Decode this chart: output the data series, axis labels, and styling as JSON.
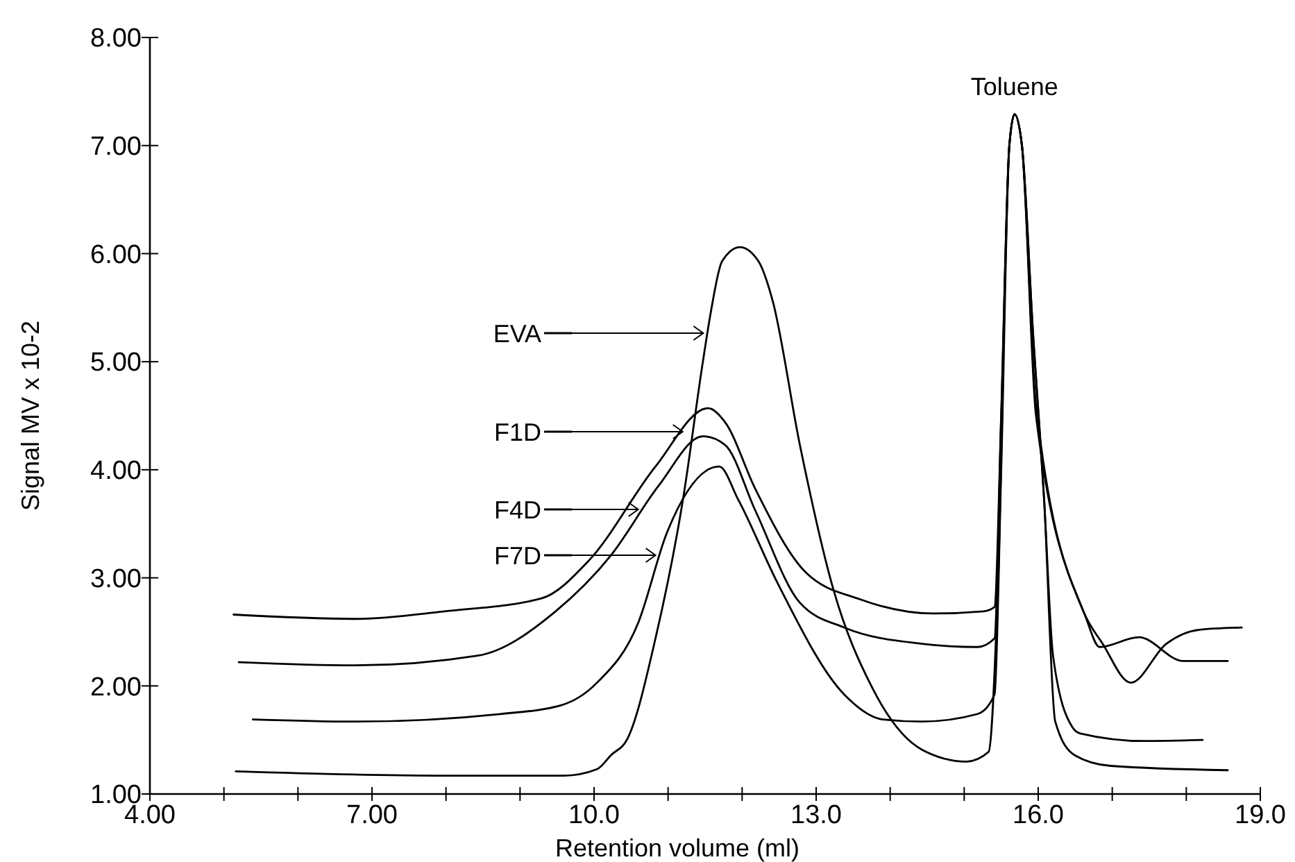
{
  "chart_data": {
    "type": "line",
    "xlabel": "Retention volume (ml)",
    "ylabel": "Signal MV x 10-2",
    "xlim": [
      4,
      19
    ],
    "ylim": [
      1,
      8
    ],
    "xticks": [
      {
        "value": 4,
        "label": "4.00"
      },
      {
        "value": 5,
        "label": null
      },
      {
        "value": 6,
        "label": null
      },
      {
        "value": 7,
        "label": "7.00"
      },
      {
        "value": 8,
        "label": null
      },
      {
        "value": 9,
        "label": null
      },
      {
        "value": 10,
        "label": "10.0"
      },
      {
        "value": 11,
        "label": null
      },
      {
        "value": 12,
        "label": null
      },
      {
        "value": 13,
        "label": "13.0"
      },
      {
        "value": 14,
        "label": null
      },
      {
        "value": 15,
        "label": null
      },
      {
        "value": 16,
        "label": "16.0"
      },
      {
        "value": 17,
        "label": null
      },
      {
        "value": 18,
        "label": null
      },
      {
        "value": 19,
        "label": "19.0"
      }
    ],
    "yticks": [
      {
        "value": 1,
        "label": "1.00"
      },
      {
        "value": 2,
        "label": "2.00"
      },
      {
        "value": 3,
        "label": "3.00"
      },
      {
        "value": 4,
        "label": "4.00"
      },
      {
        "value": 5,
        "label": "5.00"
      },
      {
        "value": 6,
        "label": "6.00"
      },
      {
        "value": 7,
        "label": "7.00"
      },
      {
        "value": 8,
        "label": "8.00"
      }
    ],
    "grid": false,
    "legend": "center",
    "marker": "none",
    "line_style": "solid",
    "annotations": [
      {
        "text": "Toluene",
        "x": 15.68,
        "y": 7.29
      }
    ],
    "series": [
      {
        "name": "EVA",
        "color": "#000000",
        "x": [
          5.16,
          7.98,
          9.59,
          10.04,
          10.23,
          10.45,
          10.83,
          11.2,
          11.47,
          11.58,
          11.73,
          11.97,
          12.22,
          12.41,
          12.78,
          13.23,
          13.76,
          14.43,
          15.03,
          15.33,
          15.45,
          15.61,
          15.68,
          15.78,
          15.93,
          16.08,
          16.23,
          16.49,
          16.98,
          18.56
        ],
        "values": [
          1.21,
          1.17,
          1.17,
          1.23,
          1.36,
          1.51,
          2.44,
          3.72,
          5.0,
          5.47,
          5.93,
          6.06,
          5.93,
          5.57,
          4.23,
          2.9,
          1.98,
          1.41,
          1.3,
          1.39,
          2.8,
          7.0,
          7.29,
          7.0,
          5.26,
          3.72,
          1.67,
          1.36,
          1.26,
          1.22
        ]
      },
      {
        "name": "F1D",
        "color": "#000000",
        "x": [
          5.13,
          6.78,
          7.98,
          9.29,
          9.93,
          10.83,
          11.54,
          11.77,
          12.18,
          12.86,
          13.6,
          14.58,
          15.26,
          15.41,
          15.5,
          15.61,
          15.68,
          15.78,
          15.97,
          16.61,
          16.87,
          17.25,
          17.73,
          18.18,
          18.75
        ],
        "values": [
          2.66,
          2.62,
          2.69,
          2.81,
          3.16,
          4.03,
          4.57,
          4.44,
          3.82,
          3.05,
          2.8,
          2.67,
          2.69,
          2.73,
          4.5,
          7.0,
          7.29,
          7.0,
          4.59,
          2.69,
          2.39,
          2.03,
          2.39,
          2.52,
          2.54
        ]
      },
      {
        "name": "F4D",
        "color": "#000000",
        "x": [
          5.2,
          6.78,
          8.43,
          9.48,
          10.23,
          10.87,
          11.47,
          11.77,
          12.18,
          12.78,
          13.38,
          14.43,
          15.18,
          15.41,
          15.5,
          15.61,
          15.68,
          15.78,
          15.97,
          16.64,
          16.83,
          17.36,
          17.96,
          18.56
        ],
        "values": [
          2.22,
          2.19,
          2.28,
          2.69,
          3.21,
          3.85,
          4.31,
          4.23,
          3.62,
          2.77,
          2.54,
          2.39,
          2.36,
          2.44,
          4.5,
          7.0,
          7.29,
          7.0,
          4.5,
          2.64,
          2.36,
          2.45,
          2.23,
          2.23
        ]
      },
      {
        "name": "F7D",
        "color": "#000000",
        "x": [
          5.39,
          6.78,
          8.73,
          9.55,
          10.04,
          10.6,
          10.98,
          11.69,
          11.95,
          12.48,
          13.38,
          13.9,
          14.43,
          15.18,
          15.41,
          15.5,
          15.61,
          15.68,
          15.78,
          15.93,
          16.08,
          16.2,
          16.46,
          16.57,
          17.43,
          18.22
        ],
        "values": [
          1.69,
          1.67,
          1.74,
          1.82,
          2.03,
          2.59,
          3.41,
          4.03,
          3.72,
          2.95,
          1.92,
          1.69,
          1.67,
          1.74,
          1.92,
          4.0,
          7.0,
          7.29,
          7.0,
          5.26,
          3.72,
          2.28,
          1.62,
          1.56,
          1.49,
          1.5
        ]
      }
    ]
  }
}
